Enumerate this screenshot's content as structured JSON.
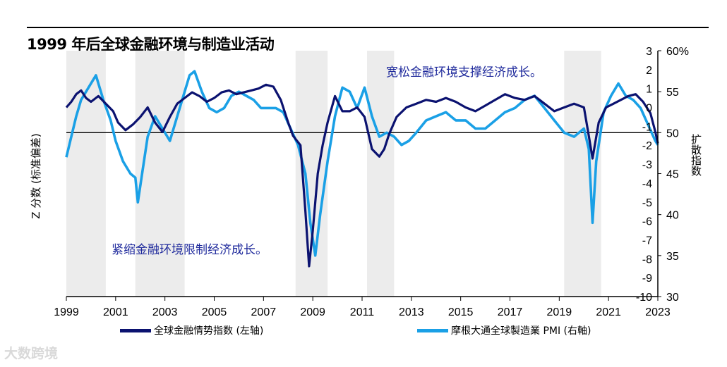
{
  "title": "1999 年后全球金融环境与制造业活动",
  "watermark": "大数跨境",
  "chart_data": {
    "type": "line",
    "title": "1999 年后全球金融环境与制造业活动",
    "ylabel_left": "Z 分数 (标准偏差)",
    "ylabel_right": "扩散指数",
    "ylim_left": [
      -10,
      3
    ],
    "ylim_right": [
      30,
      60
    ],
    "xlim": [
      1999,
      2023
    ],
    "x_ticks": [
      "1999",
      "2001",
      "2003",
      "2005",
      "2007",
      "2009",
      "2011",
      "2013",
      "2015",
      "2017",
      "2019",
      "2021",
      "2023"
    ],
    "y_ticks_left": [
      "3",
      "2",
      "1",
      "0",
      "-1",
      "-2",
      "-3",
      "-4",
      "-5",
      "-6",
      "-7",
      "-8",
      "-9",
      "-10"
    ],
    "y_ticks_right": [
      "60%",
      "55",
      "50",
      "45",
      "40",
      "35",
      "30"
    ],
    "recession_bands": [
      [
        1999.0,
        2000.6
      ],
      [
        2001.8,
        2003.8
      ],
      [
        2008.3,
        2009.6
      ],
      [
        2011.2,
        2012.3
      ],
      [
        2019.2,
        2020.7
      ]
    ],
    "colors": {
      "fci": "#0b1270",
      "pmi": "#1aa0e6",
      "annotation": "#1f2a9c",
      "band": "#ececec"
    },
    "annotations": [
      "宽松金融环境支撑经济成长。",
      "紧缩金融环境限制经济成长。"
    ],
    "series": [
      {
        "name": "全球金融情势指数 (左轴)",
        "axis": "left",
        "x": [
          1999.0,
          1999.2,
          1999.4,
          1999.6,
          1999.8,
          2000.0,
          2000.3,
          2000.6,
          2000.9,
          2001.1,
          2001.4,
          2001.7,
          2002.0,
          2002.3,
          2002.6,
          2002.9,
          2003.2,
          2003.5,
          2003.8,
          2004.1,
          2004.4,
          2004.7,
          2005.0,
          2005.3,
          2005.6,
          2005.9,
          2006.2,
          2006.5,
          2006.8,
          2007.1,
          2007.4,
          2007.7,
          2008.0,
          2008.2,
          2008.5,
          2008.7,
          2008.85,
          2009.0,
          2009.2,
          2009.4,
          2009.6,
          2009.9,
          2010.2,
          2010.5,
          2010.8,
          2011.1,
          2011.4,
          2011.7,
          2011.9,
          2012.1,
          2012.4,
          2012.8,
          2013.2,
          2013.6,
          2014.0,
          2014.4,
          2014.8,
          2015.2,
          2015.6,
          2016.0,
          2016.4,
          2016.8,
          2017.2,
          2017.6,
          2018.0,
          2018.4,
          2018.8,
          2019.2,
          2019.6,
          2020.0,
          2020.2,
          2020.35,
          2020.6,
          2020.9,
          2021.2,
          2021.5,
          2021.8,
          2022.1,
          2022.4,
          2022.7,
          2022.9,
          2023.0
        ],
        "values": [
          0.0,
          0.3,
          0.7,
          0.9,
          0.5,
          0.3,
          0.6,
          0.2,
          -0.2,
          -0.8,
          -1.2,
          -0.9,
          -0.5,
          0.0,
          -0.8,
          -1.3,
          -0.5,
          0.2,
          0.5,
          0.8,
          0.6,
          0.3,
          0.5,
          0.8,
          0.9,
          0.7,
          0.8,
          0.9,
          1.0,
          1.2,
          1.1,
          0.4,
          -0.8,
          -1.5,
          -2.0,
          -5.5,
          -8.4,
          -6.5,
          -3.5,
          -2.0,
          -0.8,
          0.6,
          -0.2,
          -0.2,
          0.0,
          -0.5,
          -2.2,
          -2.6,
          -2.2,
          -1.4,
          -0.5,
          0.0,
          0.2,
          0.4,
          0.3,
          0.5,
          0.3,
          0.0,
          -0.2,
          0.1,
          0.4,
          0.7,
          0.5,
          0.4,
          0.6,
          0.2,
          -0.2,
          0.0,
          0.2,
          0.0,
          -1.5,
          -2.7,
          -0.8,
          0.0,
          0.2,
          0.4,
          0.6,
          0.7,
          0.3,
          -0.3,
          -1.3,
          -1.9
        ]
      },
      {
        "name": "摩根大通全球製造業 PMI (右軸)",
        "axis": "right",
        "x": [
          1999.0,
          1999.2,
          1999.4,
          1999.6,
          1999.9,
          2000.2,
          2000.5,
          2000.8,
          2001.0,
          2001.3,
          2001.6,
          2001.8,
          2001.9,
          2002.1,
          2002.3,
          2002.6,
          2002.9,
          2003.2,
          2003.5,
          2003.8,
          2004.0,
          2004.2,
          2004.5,
          2004.8,
          2005.1,
          2005.4,
          2005.7,
          2006.0,
          2006.3,
          2006.6,
          2006.9,
          2007.2,
          2007.5,
          2007.8,
          2008.1,
          2008.4,
          2008.7,
          2008.9,
          2009.1,
          2009.3,
          2009.6,
          2009.9,
          2010.2,
          2010.5,
          2010.8,
          2011.1,
          2011.4,
          2011.7,
          2012.0,
          2012.3,
          2012.6,
          2012.9,
          2013.2,
          2013.6,
          2014.0,
          2014.4,
          2014.8,
          2015.2,
          2015.6,
          2016.0,
          2016.4,
          2016.8,
          2017.2,
          2017.6,
          2018.0,
          2018.4,
          2018.8,
          2019.2,
          2019.6,
          2020.0,
          2020.2,
          2020.35,
          2020.5,
          2020.8,
          2021.1,
          2021.4,
          2021.7,
          2022.0,
          2022.3,
          2022.6,
          2022.9,
          2023.0
        ],
        "values": [
          47.0,
          49.5,
          52.0,
          54.0,
          55.5,
          57.0,
          54.0,
          51.5,
          49.0,
          46.5,
          45.0,
          44.5,
          41.5,
          45.5,
          49.5,
          52.0,
          50.5,
          49.0,
          52.0,
          55.0,
          57.0,
          57.5,
          55.0,
          53.0,
          52.5,
          53.0,
          54.5,
          55.0,
          54.5,
          54.0,
          53.0,
          53.0,
          53.0,
          52.5,
          50.5,
          48.5,
          45.0,
          39.0,
          35.0,
          40.0,
          46.5,
          52.0,
          55.5,
          55.0,
          53.0,
          55.5,
          52.0,
          49.5,
          50.0,
          49.5,
          48.5,
          49.0,
          50.0,
          51.5,
          52.0,
          52.5,
          51.5,
          51.5,
          50.5,
          50.5,
          51.5,
          52.5,
          53.0,
          54.0,
          54.5,
          53.0,
          51.5,
          50.0,
          49.5,
          50.5,
          48.0,
          39.0,
          46.5,
          52.5,
          54.5,
          56.0,
          54.5,
          54.0,
          53.0,
          51.0,
          49.0,
          48.5
        ]
      }
    ]
  }
}
